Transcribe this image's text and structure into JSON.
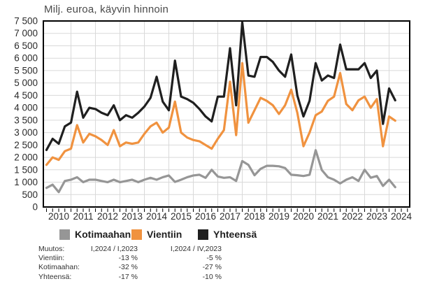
{
  "title": "Milj. euroa, käyvin hinnoin",
  "colors": {
    "domestic": "#969696",
    "export": "#f0923f",
    "total": "#1f1f1f",
    "grid": "#d9d9d9",
    "frame": "#000000",
    "axis_text": "#2b2b2b",
    "title_text": "#4a4a4a"
  },
  "chart_data": {
    "type": "line",
    "title": "Milj. euroa, käyvin hinnoin",
    "x_start": "2009Q4",
    "x_end": "2024Q1",
    "points_per_year": 4,
    "year_labels": [
      "2010",
      "2011",
      "2012",
      "2013",
      "2014",
      "2015",
      "2016",
      "2017",
      "2018",
      "2019",
      "2020",
      "2021",
      "2022",
      "2023",
      "2024"
    ],
    "ylim": [
      0,
      7500
    ],
    "y_tick_step": 500,
    "y_tick_labels": [
      "0",
      "500",
      "1 000",
      "1 500",
      "2 000",
      "2 500",
      "3 000",
      "3 500",
      "4 000",
      "4 500",
      "5 000",
      "5 500",
      "6 000",
      "6 500",
      "7 000",
      "7 500"
    ],
    "grid": true,
    "legend_position": "bottom",
    "series": [
      {
        "name": "Kotimaahan",
        "color": "#969696",
        "stroke_width": 3.2,
        "values": [
          770,
          900,
          600,
          1050,
          1100,
          1200,
          1000,
          1100,
          1100,
          1050,
          1000,
          1100,
          1000,
          1050,
          1100,
          1000,
          1100,
          1175,
          1100,
          1200,
          1270,
          1010,
          1100,
          1200,
          1270,
          1300,
          1175,
          1500,
          1230,
          1175,
          1200,
          1050,
          1850,
          1700,
          1280,
          1540,
          1660,
          1660,
          1640,
          1570,
          1300,
          1280,
          1250,
          1300,
          2290,
          1490,
          1200,
          1100,
          950,
          1100,
          1200,
          1050,
          1500,
          1180,
          1250,
          850,
          1100,
          800
        ]
      },
      {
        "name": "Vientiin",
        "color": "#f0923f",
        "stroke_width": 3.2,
        "values": [
          1700,
          2000,
          1900,
          2250,
          2350,
          3300,
          2600,
          2950,
          2850,
          2700,
          2500,
          3100,
          2450,
          2600,
          2550,
          2600,
          2950,
          3250,
          3400,
          3000,
          3200,
          4250,
          3000,
          2800,
          2700,
          2650,
          2500,
          2350,
          2750,
          3100,
          5050,
          2900,
          5800,
          3400,
          3900,
          4400,
          4280,
          4100,
          3750,
          4100,
          4730,
          3800,
          2450,
          3000,
          3700,
          3850,
          4280,
          4450,
          5400,
          4150,
          3900,
          4300,
          4450,
          4000,
          4350,
          2450,
          3650,
          3480
        ]
      },
      {
        "name": "Yhteensä",
        "color": "#1f1f1f",
        "stroke_width": 3.2,
        "values": [
          2300,
          2750,
          2550,
          3250,
          3400,
          4650,
          3600,
          4000,
          3950,
          3800,
          3700,
          4100,
          3500,
          3700,
          3600,
          3800,
          4050,
          4400,
          5250,
          4250,
          3900,
          5900,
          4450,
          4350,
          4200,
          3950,
          3650,
          3450,
          4450,
          4450,
          6400,
          4100,
          7450,
          5300,
          5250,
          6050,
          6050,
          5850,
          5500,
          5250,
          6150,
          4500,
          3650,
          4280,
          5800,
          5100,
          5300,
          5200,
          6550,
          5550,
          5550,
          5550,
          5800,
          5200,
          5500,
          3350,
          4780,
          4300
        ]
      }
    ]
  },
  "legend": {
    "items": [
      {
        "label": "Kotimaahan",
        "color": "#969696"
      },
      {
        "label": "Vientiin",
        "color": "#f0923f"
      },
      {
        "label": "Yhteensä",
        "color": "#1f1f1f"
      }
    ]
  },
  "stats_table": {
    "rows": [
      {
        "label": "Muutos:",
        "col1": "I,2024 / I,2023",
        "col2": "I,2024 / IV,2023"
      },
      {
        "label": "Vientiin:",
        "col1": "-13 %",
        "col2": "-5 %"
      },
      {
        "label": "Kotimaahan:",
        "col1": "-32 %",
        "col2": "-27 %"
      },
      {
        "label": "Yhteensä:",
        "col1": "-17 %",
        "col2": "-10 %"
      }
    ]
  }
}
